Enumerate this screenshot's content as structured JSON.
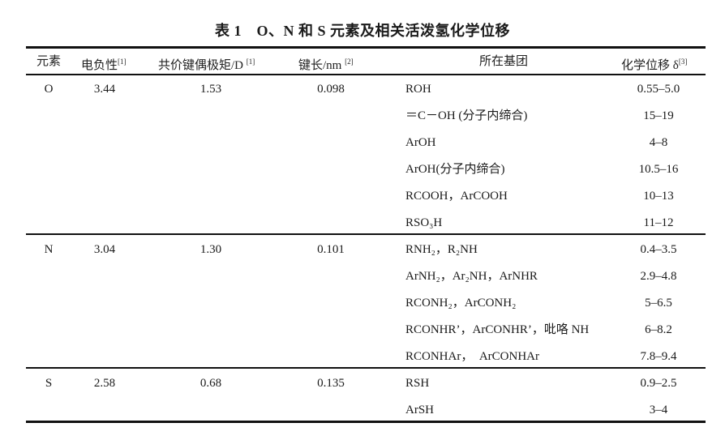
{
  "title": "表 1　O、N 和 S 元素及相关活泼氢化学位移",
  "headers": {
    "element": "元素",
    "electronegativity": "电负性",
    "electronegativity_ref": "[1]",
    "dipole": "共价键偶极矩/D",
    "dipole_ref": "[1]",
    "bond_length": "键长/nm",
    "bond_length_ref": "[2]",
    "group": "所在基团",
    "shift": "化学位移 δ",
    "shift_ref": "[3]"
  },
  "sections": [
    {
      "element": "O",
      "electronegativity": "3.44",
      "dipole": "1.53",
      "bond_length": "0.098",
      "rows": [
        {
          "group": "ROH",
          "shift": "0.55–5.0"
        },
        {
          "group": "＝C－OH (分子内缔合)",
          "shift": "15–19"
        },
        {
          "group": "ArOH",
          "shift": "4–8"
        },
        {
          "group": "ArOH(分子内缔合)",
          "shift": "10.5–16"
        },
        {
          "group": "RCOOH，ArCOOH",
          "shift": "10–13"
        },
        {
          "group": "RSO₃H",
          "shift": "11–12"
        }
      ]
    },
    {
      "element": "N",
      "electronegativity": "3.04",
      "dipole": "1.30",
      "bond_length": "0.101",
      "rows": [
        {
          "group": "RNH₂，R₂NH",
          "shift": "0.4–3.5"
        },
        {
          "group": "ArNH₂，Ar₂NH，ArNHR",
          "shift": "2.9–4.8"
        },
        {
          "group": "RCONH₂，ArCONH₂",
          "shift": "5–6.5"
        },
        {
          "group": "RCONHR’，ArCONHR’，吡咯 NH",
          "shift": "6–8.2"
        },
        {
          "group": "RCONHAr，　ArCONHAr",
          "shift": "7.8–9.4"
        }
      ]
    },
    {
      "element": "S",
      "electronegativity": "2.58",
      "dipole": "0.68",
      "bond_length": "0.135",
      "rows": [
        {
          "group": "RSH",
          "shift": "0.9–2.5"
        },
        {
          "group": "ArSH",
          "shift": "3–4"
        }
      ]
    }
  ]
}
